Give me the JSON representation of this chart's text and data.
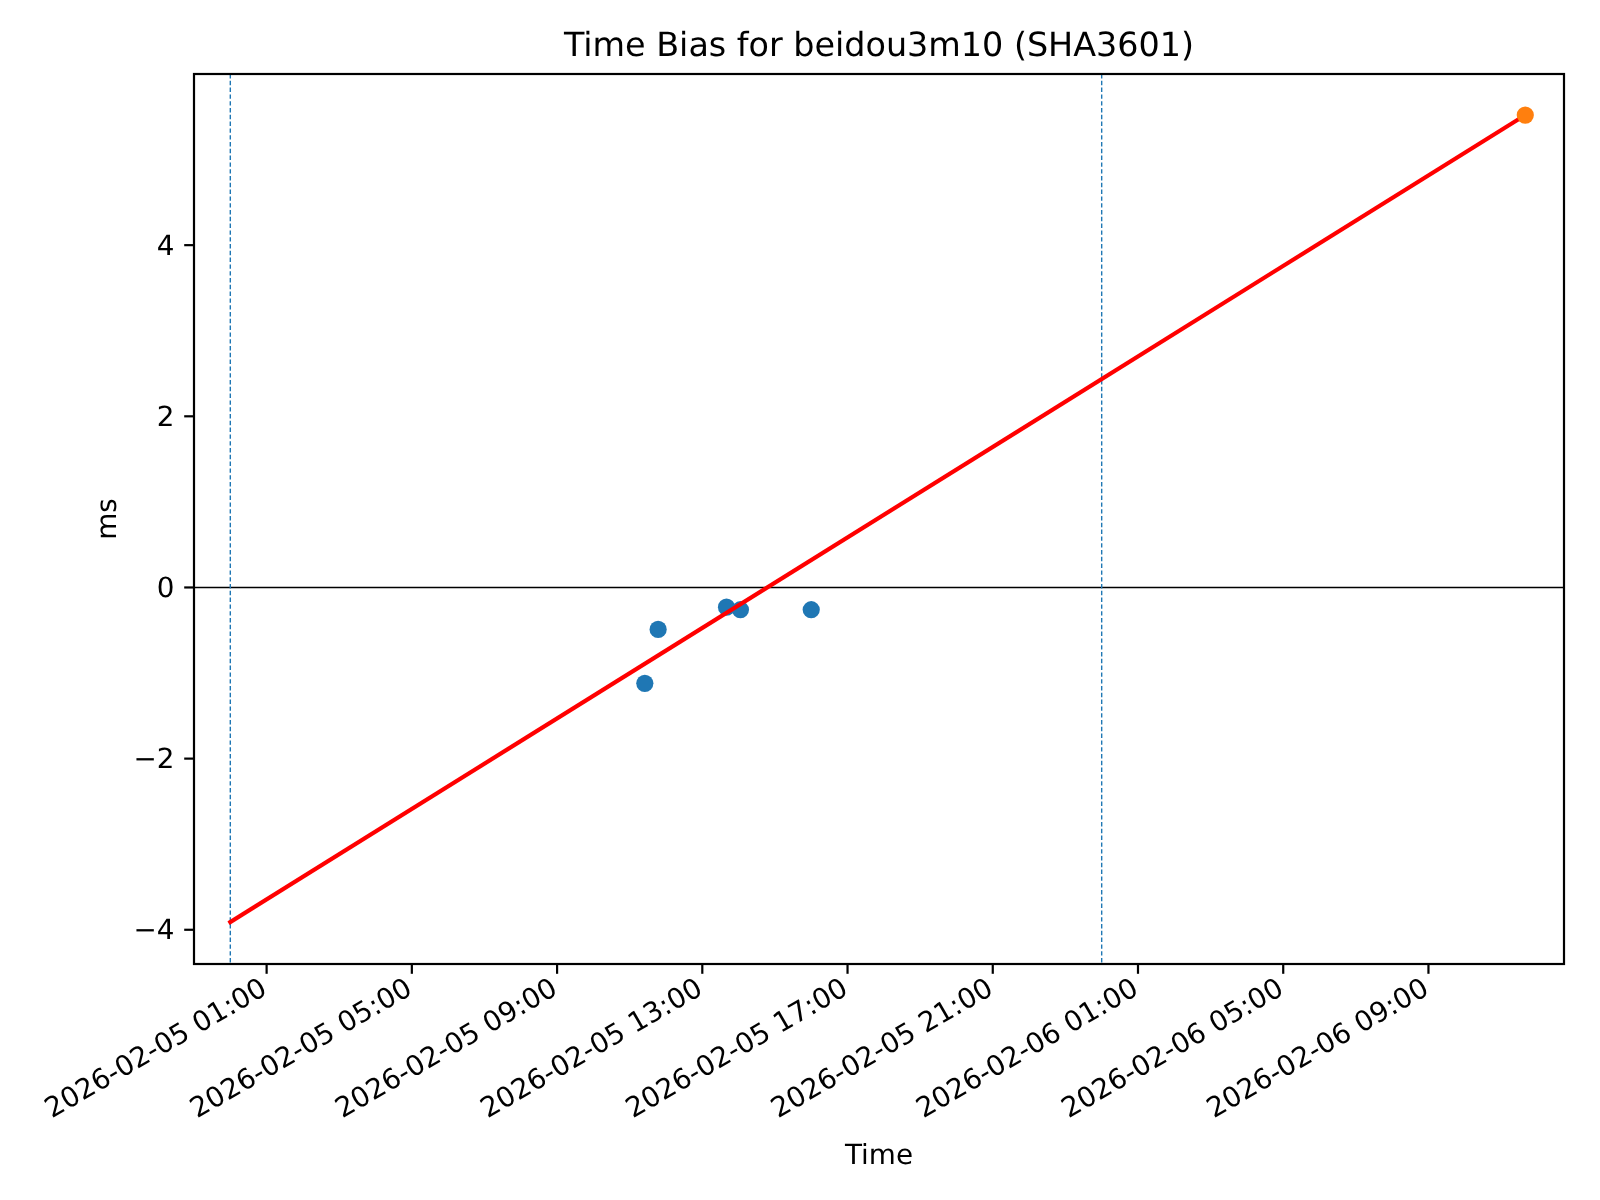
{
  "chart_data": {
    "type": "scatter",
    "title": "Time Bias for beidou3m10 (SHA3601)",
    "xlabel": "Time",
    "ylabel": "ms",
    "xlim": [
      "2026-02-04T23:00",
      "2026-02-06T12:44"
    ],
    "xticks": [
      {
        "value": "2026-02-05T01:00",
        "label": "2026-02-05 01:00"
      },
      {
        "value": "2026-02-05T05:00",
        "label": "2026-02-05 05:00"
      },
      {
        "value": "2026-02-05T09:00",
        "label": "2026-02-05 09:00"
      },
      {
        "value": "2026-02-05T13:00",
        "label": "2026-02-05 13:00"
      },
      {
        "value": "2026-02-05T17:00",
        "label": "2026-02-05 17:00"
      },
      {
        "value": "2026-02-05T21:00",
        "label": "2026-02-05 21:00"
      },
      {
        "value": "2026-02-06T01:00",
        "label": "2026-02-06 01:00"
      },
      {
        "value": "2026-02-06T05:00",
        "label": "2026-02-06 05:00"
      },
      {
        "value": "2026-02-06T09:00",
        "label": "2026-02-06 09:00"
      }
    ],
    "ylim": [
      -4.4,
      6.0
    ],
    "yticks": [
      {
        "value": -4,
        "label": "−4"
      },
      {
        "value": -2,
        "label": "−2"
      },
      0,
      2,
      4
    ],
    "series": [
      {
        "color": "#1f77b4",
        "marker": "circle",
        "x": [
          "2026-02-05T11:25",
          "2026-02-05T11:47",
          "2026-02-05T13:40",
          "2026-02-05T14:03",
          "2026-02-05T16:00"
        ],
        "values": [
          -1.12,
          -0.49,
          -0.23,
          -0.26,
          -0.26
        ]
      },
      {
        "type": "line",
        "color": "#ff0000",
        "x": [
          "2026-02-05T00:00",
          "2026-02-06T11:40"
        ],
        "values": [
          -3.91,
          5.52
        ]
      },
      {
        "color": "#ff7f0e",
        "marker": "circle",
        "x": [
          "2026-02-06T11:40"
        ],
        "values": [
          5.52
        ]
      }
    ],
    "ref_lines": [
      {
        "axis": "y",
        "value": 0,
        "color": "#000000"
      },
      {
        "axis": "x",
        "value": "2026-02-05T00:00",
        "color": "#1f77b4",
        "line_style": "dashed"
      },
      {
        "axis": "x",
        "value": "2026-02-06T00:00",
        "color": "#1f77b4",
        "line_style": "dashed"
      }
    ]
  }
}
